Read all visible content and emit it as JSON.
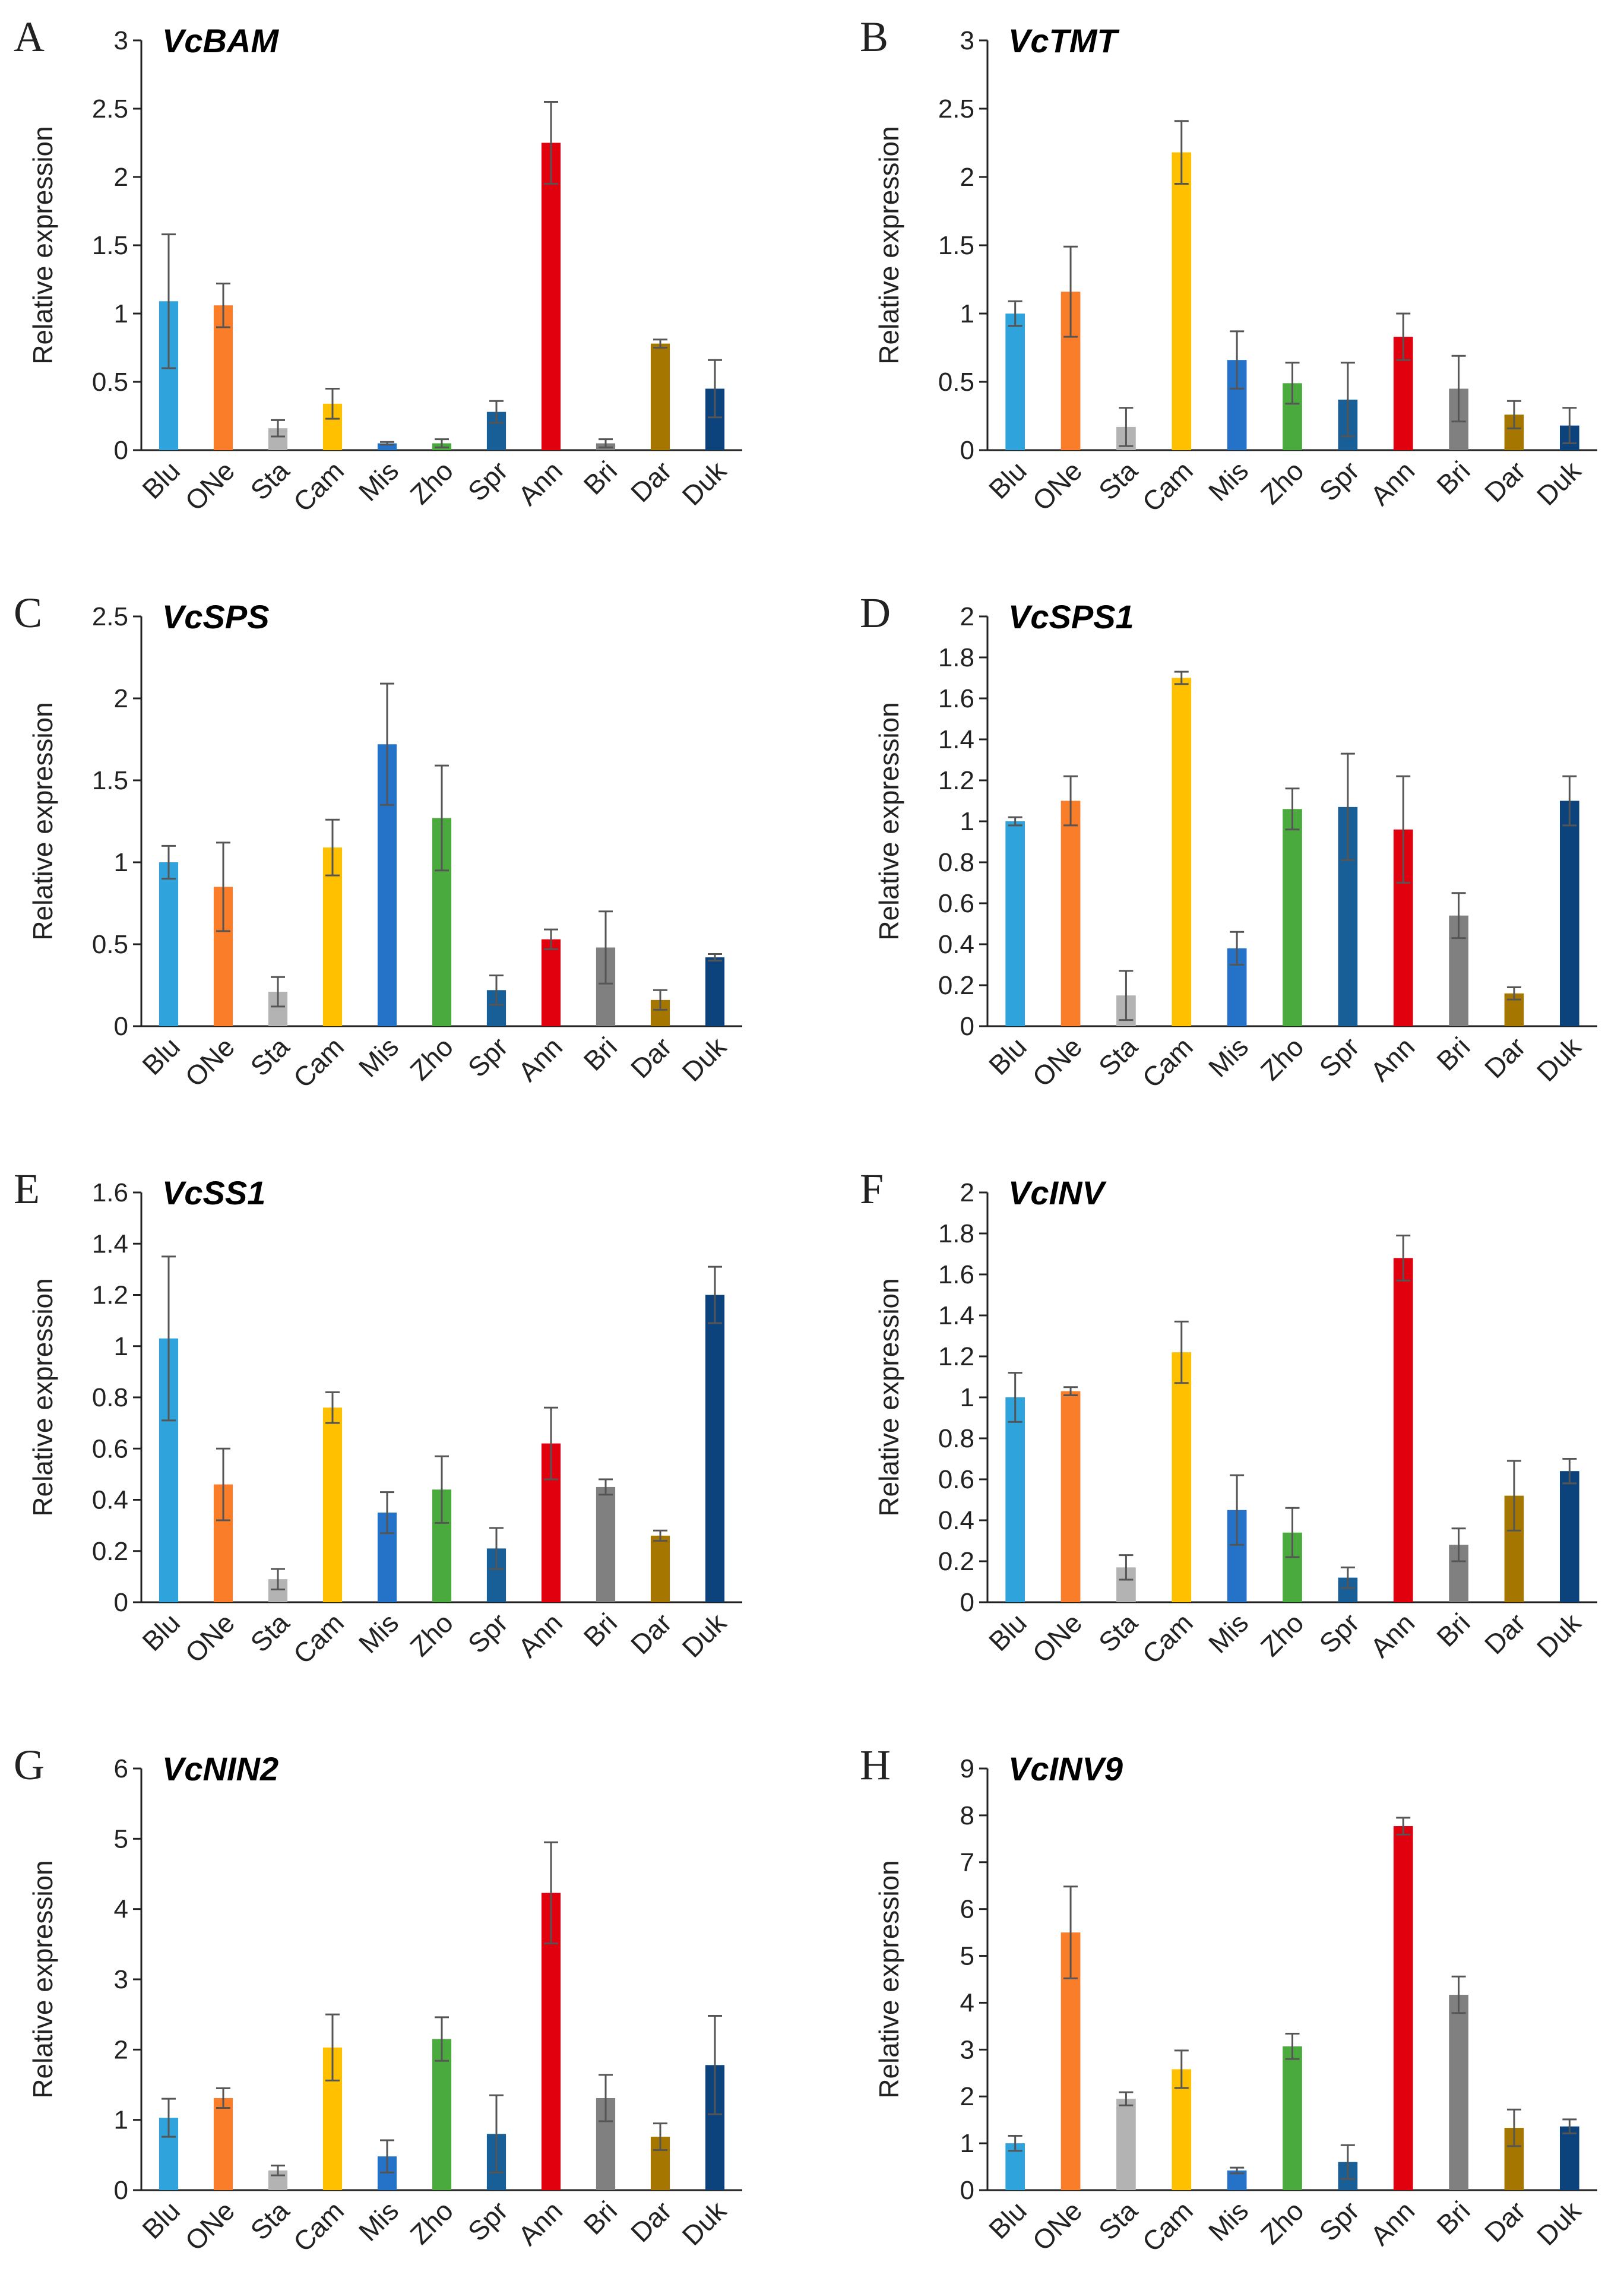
{
  "chart_data": [
    {
      "letter": "A",
      "title": "VcBAM",
      "type": "bar",
      "ylabel": "Relative expression",
      "categories": [
        "Blu",
        "ONe",
        "Sta",
        "Cam",
        "Mis",
        "Zho",
        "Spr",
        "Ann",
        "Bri",
        "Dar",
        "Duk"
      ],
      "ylim": [
        0,
        3
      ],
      "yticks": [
        "0",
        "0.5",
        "1",
        "1.5",
        "2",
        "2.5",
        "3"
      ],
      "ytick_values": [
        0,
        0.5,
        1,
        1.5,
        2,
        2.5,
        3
      ],
      "values": [
        1.09,
        1.06,
        0.16,
        0.34,
        0.05,
        0.05,
        0.28,
        2.25,
        0.05,
        0.78,
        0.45
      ],
      "errors": [
        0.49,
        0.16,
        0.06,
        0.11,
        0.01,
        0.03,
        0.08,
        0.3,
        0.03,
        0.03,
        0.21
      ]
    },
    {
      "letter": "B",
      "title": "VcTMT",
      "type": "bar",
      "ylabel": "Relative expression",
      "categories": [
        "Blu",
        "ONe",
        "Sta",
        "Cam",
        "Mis",
        "Zho",
        "Spr",
        "Ann",
        "Bri",
        "Dar",
        "Duk"
      ],
      "ylim": [
        0,
        3
      ],
      "yticks": [
        "0",
        "0.5",
        "1",
        "1.5",
        "2",
        "2.5",
        "3"
      ],
      "ytick_values": [
        0,
        0.5,
        1,
        1.5,
        2,
        2.5,
        3
      ],
      "values": [
        1.0,
        1.16,
        0.17,
        2.18,
        0.66,
        0.49,
        0.37,
        0.83,
        0.45,
        0.26,
        0.18
      ],
      "errors": [
        0.09,
        0.33,
        0.14,
        0.23,
        0.21,
        0.15,
        0.27,
        0.17,
        0.24,
        0.1,
        0.13
      ]
    },
    {
      "letter": "C",
      "title": "VcSPS",
      "type": "bar",
      "ylabel": "Relative expression",
      "categories": [
        "Blu",
        "ONe",
        "Sta",
        "Cam",
        "Mis",
        "Zho",
        "Spr",
        "Ann",
        "Bri",
        "Dar",
        "Duk"
      ],
      "ylim": [
        0,
        2.5
      ],
      "yticks": [
        "0",
        "0.5",
        "1",
        "1.5",
        "2",
        "2.5"
      ],
      "ytick_values": [
        0,
        0.5,
        1,
        1.5,
        2,
        2.5
      ],
      "values": [
        1.0,
        0.85,
        0.21,
        1.09,
        1.72,
        1.27,
        0.22,
        0.53,
        0.48,
        0.16,
        0.42
      ],
      "errors": [
        0.1,
        0.27,
        0.09,
        0.17,
        0.37,
        0.32,
        0.09,
        0.06,
        0.22,
        0.06,
        0.02
      ]
    },
    {
      "letter": "D",
      "title": "VcSPS1",
      "type": "bar",
      "ylabel": "Relative expression",
      "categories": [
        "Blu",
        "ONe",
        "Sta",
        "Cam",
        "Mis",
        "Zho",
        "Spr",
        "Ann",
        "Bri",
        "Dar",
        "Duk"
      ],
      "ylim": [
        0,
        2
      ],
      "yticks": [
        "0",
        "0.2",
        "0.4",
        "0.6",
        "0.8",
        "1",
        "1.2",
        "1.4",
        "1.6",
        "1.8",
        "2"
      ],
      "ytick_values": [
        0,
        0.2,
        0.4,
        0.6,
        0.8,
        1,
        1.2,
        1.4,
        1.6,
        1.8,
        2
      ],
      "values": [
        1.0,
        1.1,
        0.15,
        1.7,
        0.38,
        1.06,
        1.07,
        0.96,
        0.54,
        0.16,
        1.1
      ],
      "errors": [
        0.02,
        0.12,
        0.12,
        0.03,
        0.08,
        0.1,
        0.26,
        0.26,
        0.11,
        0.03,
        0.12
      ]
    },
    {
      "letter": "E",
      "title": "VcSS1",
      "type": "bar",
      "ylabel": "Relative expression",
      "categories": [
        "Blu",
        "ONe",
        "Sta",
        "Cam",
        "Mis",
        "Zho",
        "Spr",
        "Ann",
        "Bri",
        "Dar",
        "Duk"
      ],
      "ylim": [
        0,
        1.6
      ],
      "yticks": [
        "0",
        "0.2",
        "0.4",
        "0.6",
        "0.8",
        "1",
        "1.2",
        "1.4",
        "1.6"
      ],
      "ytick_values": [
        0,
        0.2,
        0.4,
        0.6,
        0.8,
        1,
        1.2,
        1.4,
        1.6
      ],
      "values": [
        1.03,
        0.46,
        0.09,
        0.76,
        0.35,
        0.44,
        0.21,
        0.62,
        0.45,
        0.26,
        1.2
      ],
      "errors": [
        0.32,
        0.14,
        0.04,
        0.06,
        0.08,
        0.13,
        0.08,
        0.14,
        0.03,
        0.02,
        0.11
      ]
    },
    {
      "letter": "F",
      "title": "VcINV",
      "type": "bar",
      "ylabel": "Relative expression",
      "categories": [
        "Blu",
        "ONe",
        "Sta",
        "Cam",
        "Mis",
        "Zho",
        "Spr",
        "Ann",
        "Bri",
        "Dar",
        "Duk"
      ],
      "ylim": [
        0,
        2
      ],
      "yticks": [
        "0",
        "0.2",
        "0.4",
        "0.6",
        "0.8",
        "1",
        "1.2",
        "1.4",
        "1.6",
        "1.8",
        "2"
      ],
      "ytick_values": [
        0,
        0.2,
        0.4,
        0.6,
        0.8,
        1,
        1.2,
        1.4,
        1.6,
        1.8,
        2
      ],
      "values": [
        1.0,
        1.03,
        0.17,
        1.22,
        0.45,
        0.34,
        0.12,
        1.68,
        0.28,
        0.52,
        0.64
      ],
      "errors": [
        0.12,
        0.02,
        0.06,
        0.15,
        0.17,
        0.12,
        0.05,
        0.11,
        0.08,
        0.17,
        0.06
      ]
    },
    {
      "letter": "G",
      "title": "VcNIN2",
      "type": "bar",
      "ylabel": "Relative expression",
      "categories": [
        "Blu",
        "ONe",
        "Sta",
        "Cam",
        "Mis",
        "Zho",
        "Spr",
        "Ann",
        "Bri",
        "Dar",
        "Duk"
      ],
      "ylim": [
        0,
        6
      ],
      "yticks": [
        "0",
        "1",
        "2",
        "3",
        "4",
        "5",
        "6"
      ],
      "ytick_values": [
        0,
        1,
        2,
        3,
        4,
        5,
        6
      ],
      "values": [
        1.03,
        1.31,
        0.28,
        2.03,
        0.48,
        2.15,
        0.8,
        4.23,
        1.31,
        0.76,
        1.78
      ],
      "errors": [
        0.27,
        0.14,
        0.07,
        0.47,
        0.23,
        0.31,
        0.55,
        0.72,
        0.33,
        0.19,
        0.7
      ]
    },
    {
      "letter": "H",
      "title": "VcINV9",
      "type": "bar",
      "ylabel": "Relative expression",
      "categories": [
        "Blu",
        "ONe",
        "Sta",
        "Cam",
        "Mis",
        "Zho",
        "Spr",
        "Ann",
        "Bri",
        "Dar",
        "Duk"
      ],
      "ylim": [
        0,
        9
      ],
      "yticks": [
        "0",
        "1",
        "2",
        "3",
        "4",
        "5",
        "6",
        "7",
        "8",
        "9"
      ],
      "ytick_values": [
        0,
        1,
        2,
        3,
        4,
        5,
        6,
        7,
        8,
        9
      ],
      "values": [
        1.0,
        5.5,
        1.95,
        2.58,
        0.42,
        3.07,
        0.6,
        7.77,
        4.17,
        1.33,
        1.36
      ],
      "errors": [
        0.16,
        0.98,
        0.14,
        0.4,
        0.06,
        0.27,
        0.36,
        0.18,
        0.39,
        0.39,
        0.15
      ]
    }
  ],
  "colors": [
    "#2ea3dc",
    "#fa7d2a",
    "#b3b3b3",
    "#ffc000",
    "#2572c9",
    "#4aaa3d",
    "#175f96",
    "#e0000e",
    "#808080",
    "#a67700",
    "#0c437c"
  ]
}
